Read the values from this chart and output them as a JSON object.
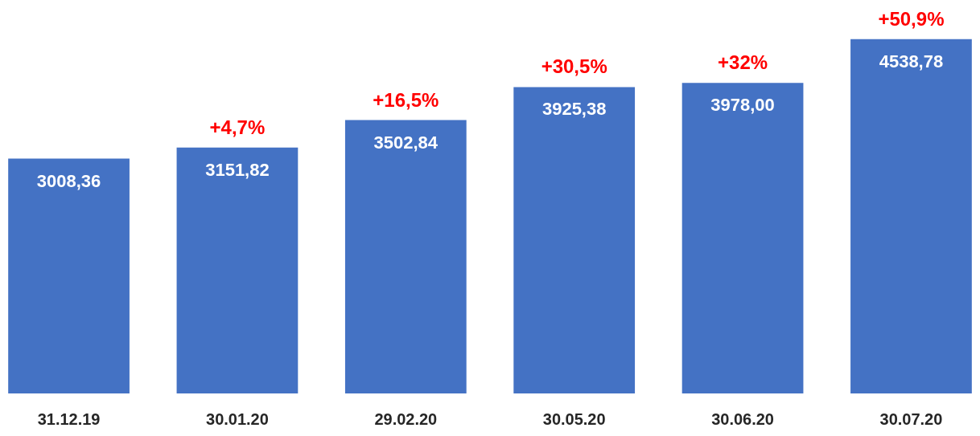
{
  "chart_data": {
    "type": "bar",
    "categories": [
      "31.12.19",
      "30.01.20",
      "29.02.20",
      "30.05.20",
      "30.06.20",
      "30.07.20"
    ],
    "values": [
      3008.36,
      3151.82,
      3502.84,
      3925.38,
      3978.0,
      4538.78
    ],
    "color": "#4472c4",
    "value_labels": [
      "3008,36",
      "3151,82",
      "3502,84",
      "3925,38",
      "3978,00",
      "4538,78"
    ],
    "annotations": [
      {
        "text": "+4,7%",
        "x": "30.01.20",
        "y": 3151.82
      },
      {
        "text": "+16,5%",
        "x": "29.02.20",
        "y": 3502.84
      },
      {
        "text": "+30,5%",
        "x": "30.05.20",
        "y": 3925.38
      },
      {
        "text": "+32%",
        "x": "30.06.20",
        "y": 3978.0
      },
      {
        "text": "+50,9%",
        "x": "30.07.20",
        "y": 4538.78
      }
    ],
    "tick_labels": "x"
  }
}
